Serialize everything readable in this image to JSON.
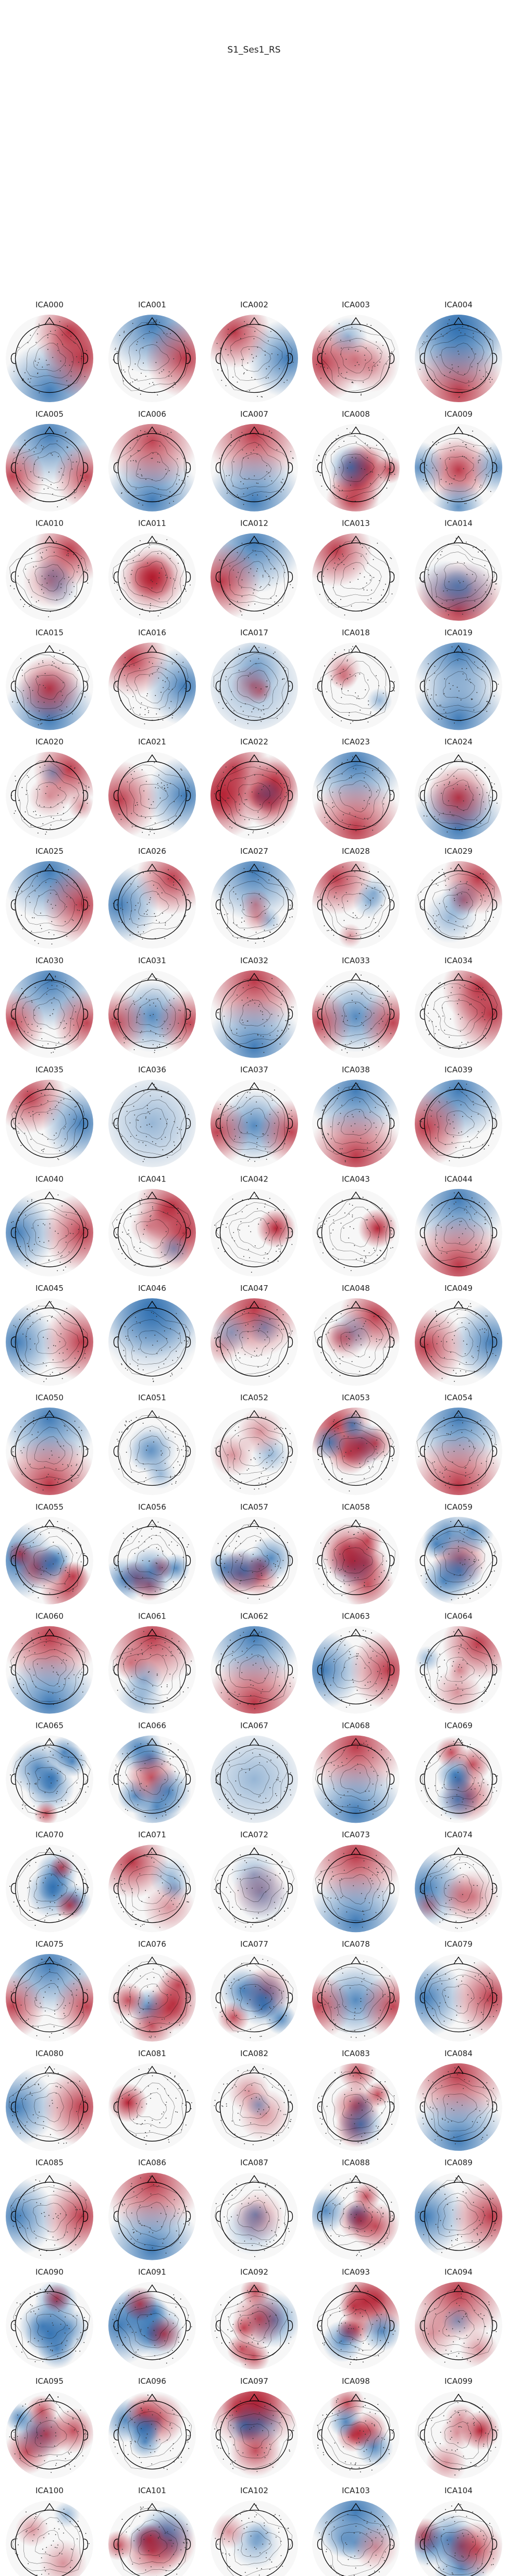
{
  "figure_title": "S1_Ses1_RS",
  "colors": {
    "pos": "#b2182b",
    "neg": "#2166ac",
    "mid": "#f7f7f7",
    "outline": "#000000",
    "sensor": "#333333"
  },
  "chart_data": {
    "type": "heatmap",
    "title": "S1_Ses1_RS",
    "layout": "grid of scalp topographic maps, 5 columns x 21 rows",
    "colormap": "RdBu_r (red = positive, blue = negative)",
    "components": [
      {
        "label": "ICA000",
        "pattern": "frontal-right positive, posterior negative"
      },
      {
        "label": "ICA001",
        "pattern": "frontal negative, right lateral positive"
      },
      {
        "label": "ICA002",
        "pattern": "left frontal positive, right negative"
      },
      {
        "label": "ICA003",
        "pattern": "left temporal positive, diffuse weak"
      },
      {
        "label": "ICA004",
        "pattern": "frontal negative band, posterior positive"
      },
      {
        "label": "ICA005",
        "pattern": "frontal negative, lateral positive"
      },
      {
        "label": "ICA006",
        "pattern": "occipital negative, anterior positive"
      },
      {
        "label": "ICA007",
        "pattern": "frontal positive, posterior negative"
      },
      {
        "label": "ICA008",
        "pattern": "mixed patchy"
      },
      {
        "label": "ICA009",
        "pattern": "central positive, peripheral negative"
      },
      {
        "label": "ICA010",
        "pattern": "right frontal positive, weak"
      },
      {
        "label": "ICA011",
        "pattern": "central positive ring"
      },
      {
        "label": "ICA012",
        "pattern": "frontal negative, left positive"
      },
      {
        "label": "ICA013",
        "pattern": "left frontal positive, temporal negative"
      },
      {
        "label": "ICA014",
        "pattern": "left posterior positive, weak"
      },
      {
        "label": "ICA015",
        "pattern": "central positive, posterior negative"
      },
      {
        "label": "ICA016",
        "pattern": "left frontal positive, right negative"
      },
      {
        "label": "ICA017",
        "pattern": "diffuse negative, weak"
      },
      {
        "label": "ICA018",
        "pattern": "diffuse weak"
      },
      {
        "label": "ICA019",
        "pattern": "frontal negative, posterior negative"
      },
      {
        "label": "ICA020",
        "pattern": "weak, right frontal positive"
      },
      {
        "label": "ICA021",
        "pattern": "left lateral positive, right negative"
      },
      {
        "label": "ICA022",
        "pattern": "frontal-left positive, patchy"
      },
      {
        "label": "ICA023",
        "pattern": "posterior positive, frontal negative"
      },
      {
        "label": "ICA024",
        "pattern": "frontal-central positive, posterior negative"
      },
      {
        "label": "ICA025",
        "pattern": "frontal negative, right positive"
      },
      {
        "label": "ICA026",
        "pattern": "left negative, right frontal positive"
      },
      {
        "label": "ICA027",
        "pattern": "frontal negative, weak"
      },
      {
        "label": "ICA028",
        "pattern": "left frontal positive, weak"
      },
      {
        "label": "ICA029",
        "pattern": "right frontal positive, weak"
      },
      {
        "label": "ICA030",
        "pattern": "frontal negative, lateral positive"
      },
      {
        "label": "ICA031",
        "pattern": "lateral positive, center negative"
      },
      {
        "label": "ICA032",
        "pattern": "frontal positive, posterior negative"
      },
      {
        "label": "ICA033",
        "pattern": "center negative, lateral positive"
      },
      {
        "label": "ICA034",
        "pattern": "frontal-right positive"
      },
      {
        "label": "ICA035",
        "pattern": "left frontal positive, right negative"
      },
      {
        "label": "ICA036",
        "pattern": "diffuse negative"
      },
      {
        "label": "ICA037",
        "pattern": "lateral positive, center negative"
      },
      {
        "label": "ICA038",
        "pattern": "frontal negative, posterior positive"
      },
      {
        "label": "ICA039",
        "pattern": "frontal negative, left positive"
      },
      {
        "label": "ICA040",
        "pattern": "left negative, right positive"
      },
      {
        "label": "ICA041",
        "pattern": "frontal-right positive, weak"
      },
      {
        "label": "ICA042",
        "pattern": "right frontal focal positive"
      },
      {
        "label": "ICA043",
        "pattern": "right frontal focal positive"
      },
      {
        "label": "ICA044",
        "pattern": "frontal negative, posterior positive"
      },
      {
        "label": "ICA045",
        "pattern": "left negative, right positive"
      },
      {
        "label": "ICA046",
        "pattern": "frontal negative band"
      },
      {
        "label": "ICA047",
        "pattern": "frontal positive, central weak"
      },
      {
        "label": "ICA048",
        "pattern": "weak, right frontal positive"
      },
      {
        "label": "ICA049",
        "pattern": "left positive, right negative"
      },
      {
        "label": "ICA050",
        "pattern": "posterior positive, frontal negative"
      },
      {
        "label": "ICA051",
        "pattern": "weak diffuse"
      },
      {
        "label": "ICA052",
        "pattern": "weak diffuse"
      },
      {
        "label": "ICA053",
        "pattern": "left frontal positive, patchy"
      },
      {
        "label": "ICA054",
        "pattern": "posterior positive, frontal negative"
      },
      {
        "label": "ICA055",
        "pattern": "left negative, patchy"
      },
      {
        "label": "ICA056",
        "pattern": "patchy negative"
      },
      {
        "label": "ICA057",
        "pattern": "patchy mixed"
      },
      {
        "label": "ICA058",
        "pattern": "patchy mixed"
      },
      {
        "label": "ICA059",
        "pattern": "patchy positive and negative"
      },
      {
        "label": "ICA060",
        "pattern": "frontal positive, posterior negative"
      },
      {
        "label": "ICA061",
        "pattern": "frontal positive, central weak"
      },
      {
        "label": "ICA062",
        "pattern": "frontal negative, posterior positive"
      },
      {
        "label": "ICA063",
        "pattern": "right positive, left negative"
      },
      {
        "label": "ICA064",
        "pattern": "right frontal positive, weak"
      },
      {
        "label": "ICA065",
        "pattern": "patchy mixed"
      },
      {
        "label": "ICA066",
        "pattern": "patchy negative"
      },
      {
        "label": "ICA067",
        "pattern": "diffuse negative"
      },
      {
        "label": "ICA068",
        "pattern": "frontal positive, posterior negative"
      },
      {
        "label": "ICA069",
        "pattern": "patchy negative"
      },
      {
        "label": "ICA070",
        "pattern": "patchy mixed"
      },
      {
        "label": "ICA071",
        "pattern": "weak, left frontal positive"
      },
      {
        "label": "ICA072",
        "pattern": "weak patchy"
      },
      {
        "label": "ICA073",
        "pattern": "frontal positive, posterior negative"
      },
      {
        "label": "ICA074",
        "pattern": "left negative, weak"
      },
      {
        "label": "ICA075",
        "pattern": "frontal negative, lateral positive"
      },
      {
        "label": "ICA076",
        "pattern": "patchy positive"
      },
      {
        "label": "ICA077",
        "pattern": "patchy mixed"
      },
      {
        "label": "ICA078",
        "pattern": "center negative, lateral positive"
      },
      {
        "label": "ICA079",
        "pattern": "right positive, left negative"
      },
      {
        "label": "ICA080",
        "pattern": "left negative, right positive"
      },
      {
        "label": "ICA081",
        "pattern": "left focal positive"
      },
      {
        "label": "ICA082",
        "pattern": "patchy weak"
      },
      {
        "label": "ICA083",
        "pattern": "patchy negative"
      },
      {
        "label": "ICA084",
        "pattern": "frontal positive, posterior negative"
      },
      {
        "label": "ICA085",
        "pattern": "left negative, right positive"
      },
      {
        "label": "ICA086",
        "pattern": "frontal positive, posterior negative"
      },
      {
        "label": "ICA087",
        "pattern": "weak patchy"
      },
      {
        "label": "ICA088",
        "pattern": "patchy mixed"
      },
      {
        "label": "ICA089",
        "pattern": "left negative, right positive"
      },
      {
        "label": "ICA090",
        "pattern": "patchy mixed"
      },
      {
        "label": "ICA091",
        "pattern": "left negative, patchy"
      },
      {
        "label": "ICA092",
        "pattern": "patchy mixed"
      },
      {
        "label": "ICA093",
        "pattern": "right frontal positive, patchy"
      },
      {
        "label": "ICA094",
        "pattern": "frontal positive, weak"
      },
      {
        "label": "ICA095",
        "pattern": "patchy mixed"
      },
      {
        "label": "ICA096",
        "pattern": "patchy mixed"
      },
      {
        "label": "ICA097",
        "pattern": "frontal positive, patchy"
      },
      {
        "label": "ICA098",
        "pattern": "patchy mixed"
      },
      {
        "label": "ICA099",
        "pattern": "weak, right focal positive"
      },
      {
        "label": "ICA100",
        "pattern": "weak patchy"
      },
      {
        "label": "ICA101",
        "pattern": "patchy positive"
      },
      {
        "label": "ICA102",
        "pattern": "weak diffuse"
      },
      {
        "label": "ICA103",
        "pattern": "frontal negative, weak"
      },
      {
        "label": "ICA104",
        "pattern": "patchy negative"
      }
    ]
  }
}
